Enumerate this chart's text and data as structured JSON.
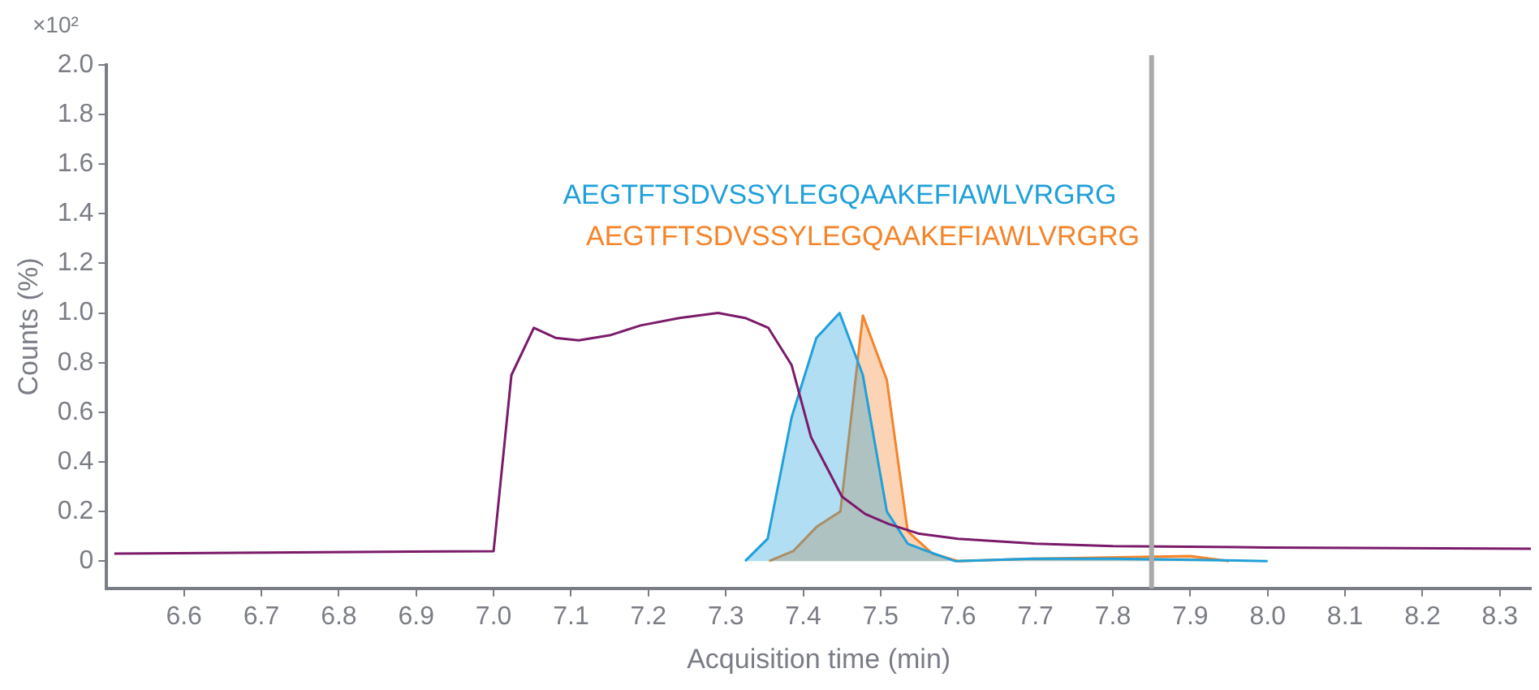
{
  "chart_data": {
    "type": "line",
    "xlabel": "Acquisition time (min)",
    "ylabel": "Counts (%)",
    "annotations": [
      "×10²"
    ],
    "xlim": [
      6.5,
      8.34
    ],
    "xticks": [
      6.6,
      6.7,
      6.8,
      6.9,
      {
        "value": 7,
        "label": "7.0"
      },
      7.1,
      7.2,
      7.3,
      7.4,
      7.5,
      7.6,
      7.7,
      7.8,
      7.9,
      {
        "value": 8,
        "label": "8.0"
      },
      8.1,
      8.2,
      8.3
    ],
    "ylim": [
      -0.11,
      2.0
    ],
    "yticks": [
      0,
      0.2,
      0.4,
      0.6,
      0.8,
      {
        "value": 1,
        "label": "1.0"
      },
      1.2,
      1.4,
      1.6,
      1.8,
      {
        "value": 2,
        "label": "2.0"
      }
    ],
    "grid": false,
    "marker": "none",
    "line_style": "solid",
    "ref_lines": [
      {
        "axis": "x",
        "value": 7.85,
        "color": "#aaaaaa"
      }
    ],
    "series": [
      {
        "type": "line",
        "color": "#7b1a6a",
        "x": [
          6.51,
          7.0,
          7.023,
          7.052,
          7.08,
          7.11,
          7.15,
          7.19,
          7.24,
          7.29,
          7.325,
          7.355,
          7.385,
          7.41,
          7.45,
          7.48,
          7.51,
          7.55,
          7.6,
          7.7,
          7.8,
          8.0,
          8.34
        ],
        "values": [
          0.03,
          0.04,
          0.75,
          0.94,
          0.9,
          0.89,
          0.91,
          0.95,
          0.98,
          1.0,
          0.98,
          0.94,
          0.79,
          0.5,
          0.26,
          0.19,
          0.15,
          0.11,
          0.09,
          0.07,
          0.06,
          0.055,
          0.05
        ]
      },
      {
        "type": "area",
        "name": "AEGTFTSDVSSYLEGQAAKEFIAWLVRGRG",
        "color": "#1fa0da",
        "x": [
          7.325,
          7.354,
          7.385,
          7.417,
          7.447,
          7.477,
          7.508,
          7.535,
          7.56,
          7.596,
          7.7,
          7.8,
          8.0
        ],
        "values": [
          0,
          0.09,
          0.58,
          0.9,
          1.0,
          0.75,
          0.2,
          0.07,
          0.04,
          0,
          0.01,
          0.01,
          0
        ]
      },
      {
        "type": "area",
        "name": "AEGTFTSDVSSYLEGQAAKEFIAWLVRGRG",
        "color": "#f5842a",
        "x": [
          7.356,
          7.387,
          7.418,
          7.448,
          7.477,
          7.508,
          7.535,
          7.567,
          7.6,
          7.7,
          7.9,
          7.95
        ],
        "values": [
          0,
          0.04,
          0.14,
          0.2,
          0.99,
          0.73,
          0.12,
          0.03,
          0,
          0.01,
          0.02,
          0
        ]
      }
    ]
  }
}
